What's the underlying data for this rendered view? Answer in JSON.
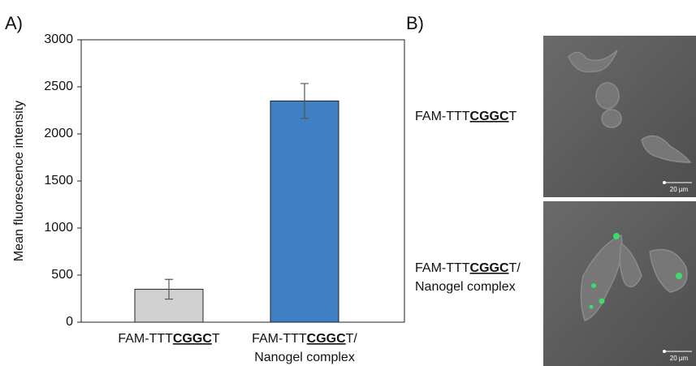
{
  "chart_data": {
    "type": "bar",
    "panel_label": "A)",
    "y_label": "Mean fluorescence intensity",
    "categories": [
      [
        "FAM-TTT",
        "CGGC",
        "T"
      ],
      [
        "FAM-TTT",
        "CGGC",
        "T/",
        "Nanogel complex"
      ]
    ],
    "values": [
      350,
      2350
    ],
    "errors": [
      105,
      185
    ],
    "colors": [
      "#d0d0d0",
      "#3f7fc4"
    ],
    "ylim": [
      0,
      3000
    ],
    "yticks": [
      0,
      500,
      1000,
      1500,
      2000,
      2500,
      3000
    ],
    "grid": false
  },
  "panel_b": {
    "panel_label": "B)",
    "images": [
      {
        "label": [
          "FAM-TTT",
          "CGGC",
          "T"
        ],
        "scale_bar": "20 µm"
      },
      {
        "label": [
          "FAM-TTT",
          "CGGC",
          "T/",
          "Nanogel complex"
        ],
        "scale_bar": "20 µm"
      }
    ]
  }
}
